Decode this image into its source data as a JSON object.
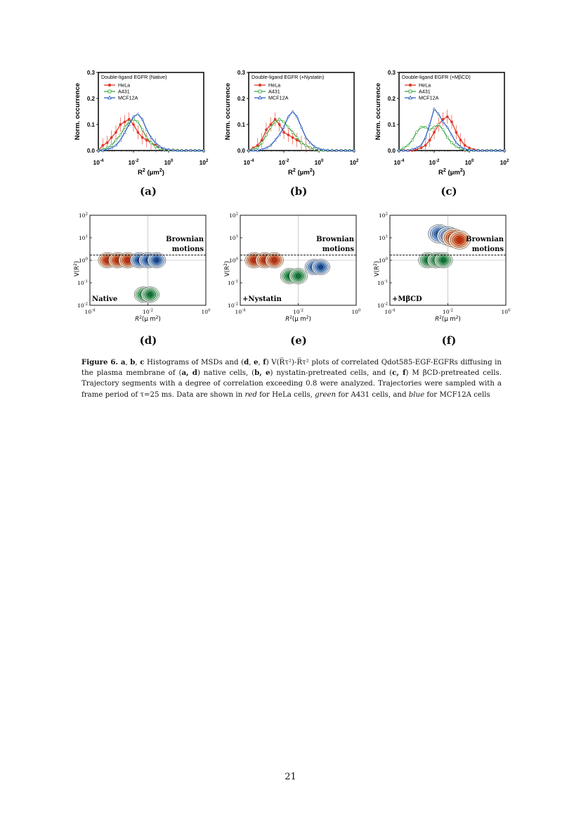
{
  "colors": {
    "hela": "#e23a2a",
    "a431": "#3aa843",
    "mcf12a": "#2f5fbf"
  },
  "histograms": [
    {
      "id": "a",
      "label": "(a)",
      "title": "Double-ligand EGFR (Native)"
    },
    {
      "id": "b",
      "label": "(b)",
      "title": "Double-ligand EGFR (+Nystatin)"
    },
    {
      "id": "c",
      "label": "(c)",
      "title": "Double-ligand EGFR (+MβCD)"
    }
  ],
  "hist_common": {
    "ylabel": "Norm. occurrence",
    "xlabel_base": "R",
    "xlabel_unit": "(μm",
    "yticks": [
      "0.0",
      "0.1",
      "0.2",
      "0.3"
    ],
    "xticks": [
      {
        "base": "10",
        "exp": "-4"
      },
      {
        "base": "10",
        "exp": "-2"
      },
      {
        "base": "10",
        "exp": "0"
      },
      {
        "base": "10",
        "exp": "2"
      }
    ],
    "legend": [
      "HeLa",
      "A431",
      "MCF12A"
    ]
  },
  "contours": [
    {
      "id": "d",
      "label": "(d)",
      "condition": "Native"
    },
    {
      "id": "e",
      "label": "(e)",
      "condition": "+Nystatin"
    },
    {
      "id": "f",
      "label": "(f)",
      "condition": "+MβCD"
    }
  ],
  "contour_common": {
    "brownian_line1": "Brownian",
    "brownian_line2": "motions",
    "ylabel": "V(R",
    "xlabel": "(μ m",
    "yticks": [
      {
        "base": "10",
        "exp": "2"
      },
      {
        "base": "10",
        "exp": "1"
      },
      {
        "base": "10",
        "exp": "0"
      },
      {
        "base": "10",
        "exp": "-1"
      },
      {
        "base": "10",
        "exp": "-2"
      }
    ],
    "xticks": [
      {
        "base": "10",
        "exp": "-4"
      },
      {
        "base": "10",
        "exp": "-2"
      },
      {
        "base": "10",
        "exp": "0"
      }
    ]
  },
  "chart_data": [
    {
      "type": "line",
      "panel": "a",
      "title": "Double-ligand EGFR (Native)",
      "ylabel": "Norm. occurrence",
      "xlabel": "R² (μm²)",
      "xscale": "log",
      "xlim": [
        0.0001,
        100
      ],
      "ylim": [
        0,
        0.3
      ],
      "x": [
        0.0001,
        0.00018,
        0.00032,
        0.00056,
        0.001,
        0.0018,
        0.0032,
        0.0056,
        0.01,
        0.018,
        0.032,
        0.056,
        0.1,
        0.18,
        0.32,
        0.56,
        1,
        1.8,
        3.2,
        5.6,
        10,
        18,
        32,
        56,
        100
      ],
      "series": [
        {
          "name": "HeLa",
          "values": [
            0.0,
            0.02,
            0.03,
            0.05,
            0.07,
            0.1,
            0.11,
            0.12,
            0.1,
            0.07,
            0.05,
            0.04,
            0.03,
            0.02,
            0.01,
            0.005,
            0.003,
            0.002,
            0.001,
            0.0,
            0.0,
            0.0,
            0.0,
            0.0,
            0.0
          ]
        },
        {
          "name": "A431",
          "values": [
            0.0,
            0.005,
            0.01,
            0.02,
            0.04,
            0.06,
            0.09,
            0.11,
            0.12,
            0.11,
            0.08,
            0.05,
            0.03,
            0.015,
            0.008,
            0.004,
            0.002,
            0.001,
            0.0,
            0.0,
            0.0,
            0.0,
            0.0,
            0.0,
            0.0
          ]
        },
        {
          "name": "MCF12A",
          "values": [
            0.0,
            0.0,
            0.005,
            0.01,
            0.02,
            0.04,
            0.07,
            0.1,
            0.13,
            0.14,
            0.12,
            0.08,
            0.05,
            0.03,
            0.015,
            0.007,
            0.003,
            0.001,
            0.0,
            0.0,
            0.0,
            0.0,
            0.0,
            0.0,
            0.0
          ]
        }
      ]
    },
    {
      "type": "line",
      "panel": "b",
      "title": "Double-ligand EGFR (+Nystatin)",
      "ylabel": "Norm. occurrence",
      "xlabel": "R² (μm²)",
      "xscale": "log",
      "xlim": [
        0.0001,
        100
      ],
      "ylim": [
        0,
        0.3
      ],
      "x": [
        0.0001,
        0.00018,
        0.00032,
        0.00056,
        0.001,
        0.0018,
        0.0032,
        0.0056,
        0.01,
        0.018,
        0.032,
        0.056,
        0.1,
        0.18,
        0.32,
        0.56,
        1,
        1.8,
        3.2,
        5.6,
        10,
        18,
        32,
        56,
        100
      ],
      "series": [
        {
          "name": "HeLa",
          "values": [
            0.0,
            0.01,
            0.02,
            0.04,
            0.08,
            0.1,
            0.12,
            0.1,
            0.07,
            0.06,
            0.05,
            0.04,
            0.03,
            0.02,
            0.01,
            0.005,
            0.002,
            0.001,
            0.0,
            0.0,
            0.0,
            0.0,
            0.0,
            0.0,
            0.0
          ]
        },
        {
          "name": "A431",
          "values": [
            0.0,
            0.005,
            0.01,
            0.03,
            0.06,
            0.09,
            0.11,
            0.12,
            0.11,
            0.09,
            0.07,
            0.05,
            0.03,
            0.02,
            0.01,
            0.005,
            0.002,
            0.0,
            0.0,
            0.0,
            0.0,
            0.0,
            0.0,
            0.0,
            0.0
          ]
        },
        {
          "name": "MCF12A",
          "values": [
            0.0,
            0.0,
            0.0,
            0.005,
            0.01,
            0.02,
            0.04,
            0.06,
            0.09,
            0.13,
            0.15,
            0.13,
            0.09,
            0.05,
            0.03,
            0.015,
            0.007,
            0.003,
            0.001,
            0.0,
            0.0,
            0.0,
            0.0,
            0.0,
            0.0
          ]
        }
      ]
    },
    {
      "type": "line",
      "panel": "c",
      "title": "Double-ligand EGFR (+MβCD)",
      "ylabel": "Norm. occurrence",
      "xlabel": "R² (μm²)",
      "xscale": "log",
      "xlim": [
        0.0001,
        100
      ],
      "ylim": [
        0,
        0.3
      ],
      "x": [
        0.0001,
        0.00018,
        0.00032,
        0.00056,
        0.001,
        0.0018,
        0.0032,
        0.0056,
        0.01,
        0.018,
        0.032,
        0.056,
        0.1,
        0.18,
        0.32,
        0.56,
        1,
        1.8,
        3.2,
        5.6,
        10,
        18,
        32,
        56,
        100
      ],
      "series": [
        {
          "name": "HeLa",
          "values": [
            0.0,
            0.0,
            0.0,
            0.0,
            0.005,
            0.01,
            0.02,
            0.04,
            0.07,
            0.1,
            0.12,
            0.13,
            0.11,
            0.07,
            0.04,
            0.02,
            0.01,
            0.004,
            0.001,
            0.0,
            0.0,
            0.0,
            0.0,
            0.0,
            0.0
          ]
        },
        {
          "name": "A431",
          "values": [
            0.0,
            0.01,
            0.02,
            0.04,
            0.07,
            0.09,
            0.09,
            0.08,
            0.09,
            0.1,
            0.08,
            0.05,
            0.03,
            0.015,
            0.007,
            0.003,
            0.001,
            0.0,
            0.0,
            0.0,
            0.0,
            0.0,
            0.0,
            0.0,
            0.0
          ]
        },
        {
          "name": "MCF12A",
          "values": [
            0.0,
            0.0,
            0.0,
            0.005,
            0.01,
            0.02,
            0.05,
            0.1,
            0.16,
            0.14,
            0.11,
            0.09,
            0.06,
            0.03,
            0.015,
            0.006,
            0.002,
            0.0,
            0.0,
            0.0,
            0.0,
            0.0,
            0.0,
            0.0,
            0.0
          ]
        }
      ]
    },
    {
      "type": "scatter",
      "panel": "d",
      "xlabel": "R² (μ m²)",
      "ylabel": "V(R²)",
      "xscale": "log",
      "yscale": "log",
      "xlim": [
        0.0001,
        1
      ],
      "ylim": [
        0.01,
        100
      ],
      "series": [
        {
          "name": "HeLa",
          "clusters": [
            [
              0.0004,
              1
            ],
            [
              0.0009,
              1
            ],
            [
              0.002,
              1
            ]
          ]
        },
        {
          "name": "MCF12A",
          "clusters": [
            [
              0.005,
              1
            ],
            [
              0.01,
              1
            ],
            [
              0.02,
              1
            ]
          ]
        },
        {
          "name": "A431",
          "clusters": [
            [
              0.007,
              0.03
            ],
            [
              0.012,
              0.03
            ]
          ]
        }
      ],
      "reference_line": 1.7
    },
    {
      "type": "scatter",
      "panel": "e",
      "xlabel": "R² (μ m²)",
      "ylabel": "V(R²)",
      "xscale": "log",
      "yscale": "log",
      "xlim": [
        0.0001,
        1
      ],
      "ylim": [
        0.01,
        100
      ],
      "series": [
        {
          "name": "HeLa",
          "clusters": [
            [
              0.0003,
              1
            ],
            [
              0.0007,
              1
            ],
            [
              0.0015,
              1
            ]
          ]
        },
        {
          "name": "A431",
          "clusters": [
            [
              0.005,
              0.2
            ],
            [
              0.01,
              0.2
            ]
          ]
        },
        {
          "name": "MCF12A",
          "clusters": [
            [
              0.035,
              0.5
            ],
            [
              0.06,
              0.5
            ]
          ]
        }
      ],
      "reference_line": 1.7
    },
    {
      "type": "scatter",
      "panel": "f",
      "xlabel": "R² (μ m²)",
      "ylabel": "V(R²)",
      "xscale": "log",
      "yscale": "log",
      "xlim": [
        0.0001,
        1
      ],
      "ylim": [
        0.01,
        100
      ],
      "series": [
        {
          "name": "A431",
          "clusters": [
            [
              0.002,
              1
            ],
            [
              0.004,
              1
            ],
            [
              0.007,
              1
            ]
          ]
        },
        {
          "name": "MCF12A",
          "clusters": [
            [
              0.005,
              15
            ],
            [
              0.01,
              12
            ]
          ]
        },
        {
          "name": "HeLa",
          "clusters": [
            [
              0.015,
              10
            ],
            [
              0.025,
              8
            ]
          ]
        }
      ],
      "reference_line": 1.7
    }
  ],
  "caption": {
    "fig": "Figure 6.",
    "part1": " a",
    "p2": ", ",
    "b": "b",
    "p3": ", ",
    "c": "c",
    "part2": " Histograms of MSDs and (",
    "d": "d",
    "p4": ", ",
    "e": "e",
    "p5": ", ",
    "f": "f",
    "part3": ") V(R̅τ²)-R̅τ² plots of correlated Qdot585-EGF-EGFRs diffusing in the plasma membrane of (",
    "ad": "a, d",
    "part4": ") native cells, (",
    "be": "b, e",
    "part5": ") nystatin-pretreated cells, and (",
    "cf": "c, f",
    "part6": ") M βCD-pretreated cells. Trajectory segments with a degree of correlation exceeding 0.8 were analyzed. Trajectories were sampled with a frame period of τ=25 ms. Data are shown in ",
    "red": "red",
    "part7": " for HeLa cells, ",
    "green": "green",
    "part8": " for A431 cells, and ",
    "blue": "blue",
    "part9": " for MCF12A cells"
  },
  "page_number": "21"
}
